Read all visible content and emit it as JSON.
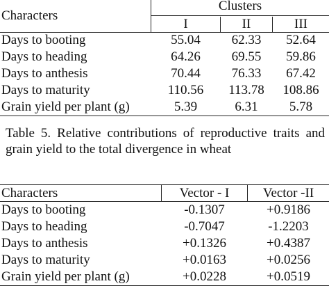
{
  "table4": {
    "header": {
      "characters": "Characters",
      "clusters": "Clusters",
      "cluster_cols": [
        "I",
        "II",
        "III"
      ]
    },
    "rows": [
      {
        "label": "Days to booting",
        "values": [
          "55.04",
          "62.33",
          "52.64"
        ]
      },
      {
        "label": "Days to heading",
        "values": [
          "64.26",
          "69.55",
          "59.86"
        ]
      },
      {
        "label": "Days to anthesis",
        "values": [
          "70.44",
          "76.33",
          "67.42"
        ]
      },
      {
        "label": "Days to maturity",
        "values": [
          "110.56",
          "113.78",
          "108.86"
        ]
      },
      {
        "label": "Grain yield per plant (g)",
        "values": [
          "5.39",
          "6.31",
          "5.78"
        ]
      }
    ]
  },
  "table5": {
    "caption": "Table 5. Relative contributions of reproductive traits and grain yield to the total divergence in wheat",
    "header": {
      "characters": "Characters",
      "vectors": [
        "Vector - I",
        "Vector -II"
      ]
    },
    "rows": [
      {
        "label": "Days to booting",
        "values": [
          "-0.1307",
          "+0.9186"
        ]
      },
      {
        "label": "Days to heading",
        "values": [
          "-0.7047",
          "-1.2203"
        ]
      },
      {
        "label": "Days to anthesis",
        "values": [
          "+0.1326",
          "+0.4387"
        ]
      },
      {
        "label": "Days to maturity",
        "values": [
          "+0.0163",
          "+0.0256"
        ]
      },
      {
        "label": "Grain yield per plant (g)",
        "values": [
          "+0.0228",
          "+0.0519"
        ]
      }
    ]
  }
}
